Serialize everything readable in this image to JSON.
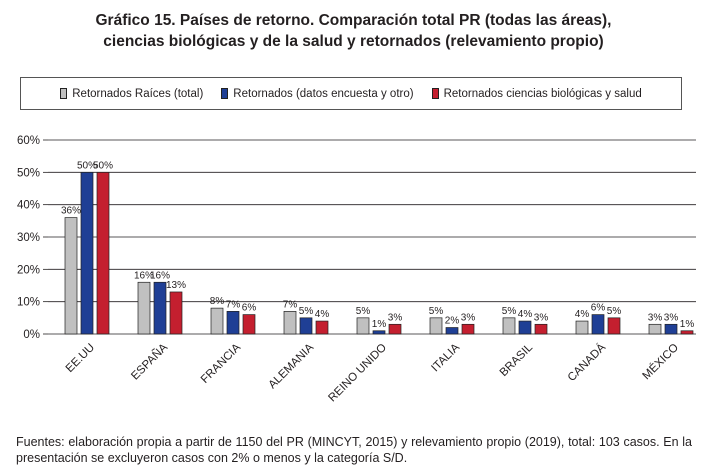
{
  "title_line1": "Gráfico 15. Países de retorno. Comparación total PR (todas las áreas),",
  "title_line2": "ciencias biológicas y de la salud y retornados (relevamiento propio)",
  "footnote": "Fuentes: elaboración propia a partir de 1150 del PR (MINCYT, 2015) y relevamiento propio (2019), total: 103 casos. En la presentación se excluyeron casos con 2% o menos y la categoría S/D.",
  "colors": {
    "series_0": "#c0c0c0",
    "series_1": "#1f3f95",
    "series_2": "#c41f2f",
    "grid": "#231f20"
  },
  "chart_data": {
    "type": "bar",
    "title": "Gráfico 15. Países de retorno. Comparación total PR (todas las áreas), ciencias biológicas y de la salud y retornados (relevamiento propio)",
    "categories": [
      "EE.UU",
      "ESPAÑA",
      "FRANCIA",
      "ALEMANIA",
      "REINO UNIDO",
      "ITALIA",
      "BRASIL",
      "CANADÁ",
      "MÉXICO"
    ],
    "series": [
      {
        "name": "Retornados Raíces (total)",
        "values": [
          36,
          16,
          8,
          7,
          5,
          5,
          5,
          4,
          3
        ]
      },
      {
        "name": "Retornados (datos encuesta y otro)",
        "values": [
          50,
          16,
          7,
          5,
          1,
          2,
          4,
          6,
          3
        ]
      },
      {
        "name": "Retornados ciencias biológicas y salud",
        "values": [
          50,
          13,
          6,
          4,
          3,
          3,
          3,
          5,
          1
        ]
      }
    ],
    "yticks": [
      "0%",
      "10%",
      "20%",
      "30%",
      "40%",
      "50%",
      "60%"
    ],
    "ylim": [
      0,
      60
    ],
    "xlabel": "",
    "ylabel": "",
    "legend_position": "top",
    "grid": true
  }
}
